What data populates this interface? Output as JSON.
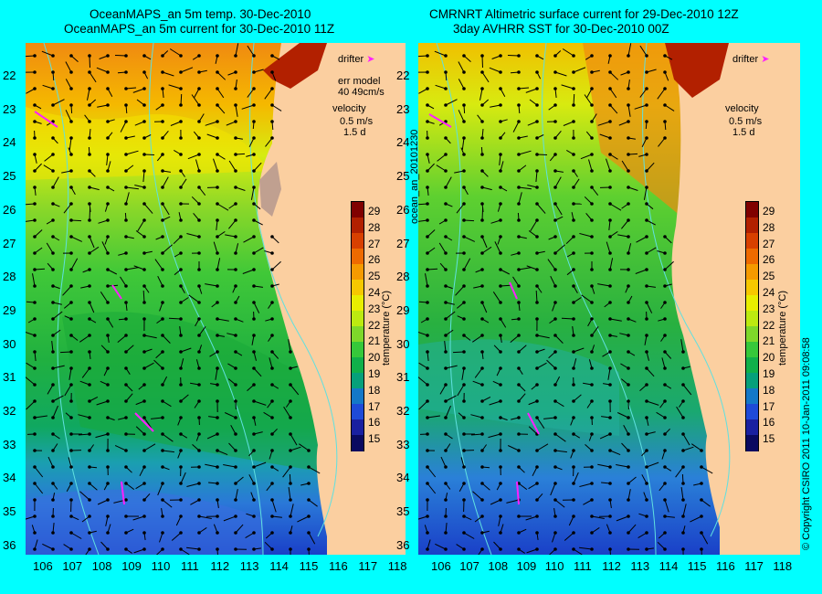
{
  "left_panel": {
    "title_line1": "OceanMAPS_an 5m temp. 30-Dec-2010",
    "title_line2": "OceanMAPS_an 5m current for 30-Dec-2010 11Z",
    "legend": {
      "drifter": "drifter",
      "err_model": "err model",
      "err_value": "40 49cm/s",
      "velocity": "velocity",
      "vel_value": "0.5 m/s",
      "vel_days": "1.5 d"
    }
  },
  "right_panel": {
    "title_line1": "CMRNRT Altimetric surface current for 29-Dec-2010 12Z",
    "title_line2": "3day AVHRR SST for 30-Dec-2010 00Z",
    "legend": {
      "drifter": "drifter",
      "velocity": "velocity",
      "vel_value": "0.5 m/s",
      "vel_days": "1.5 d"
    }
  },
  "colorbar": {
    "label": "temperature (°C)",
    "ticks": [
      "29",
      "28",
      "27",
      "26",
      "25",
      "24",
      "23",
      "22",
      "21",
      "20",
      "19",
      "18",
      "17",
      "16",
      "15"
    ],
    "colors": [
      "#800000",
      "#b22000",
      "#d84000",
      "#ee6a00",
      "#f59a00",
      "#f6c800",
      "#e8ee00",
      "#bcea10",
      "#7ed82a",
      "#36c83a",
      "#10b04a",
      "#06a07a",
      "#1478c8",
      "#1e4ad8",
      "#1a20a0",
      "#0a0a60"
    ]
  },
  "x_ticks": [
    "106",
    "107",
    "108",
    "109",
    "110",
    "111",
    "112",
    "113",
    "114",
    "115",
    "116",
    "117",
    "118"
  ],
  "y_ticks": [
    "22",
    "23",
    "24",
    "25",
    "26",
    "27",
    "28",
    "29",
    "30",
    "31",
    "32",
    "33",
    "34",
    "35",
    "36"
  ],
  "side_label": "ocean_an_20101230",
  "copyright": "© Copyright CSIRO 2011   10-Jan-2011 09:08:58",
  "colors": {
    "background": "#00ffff",
    "land": "#fbcfa0",
    "drifter": "#ff20ff"
  }
}
